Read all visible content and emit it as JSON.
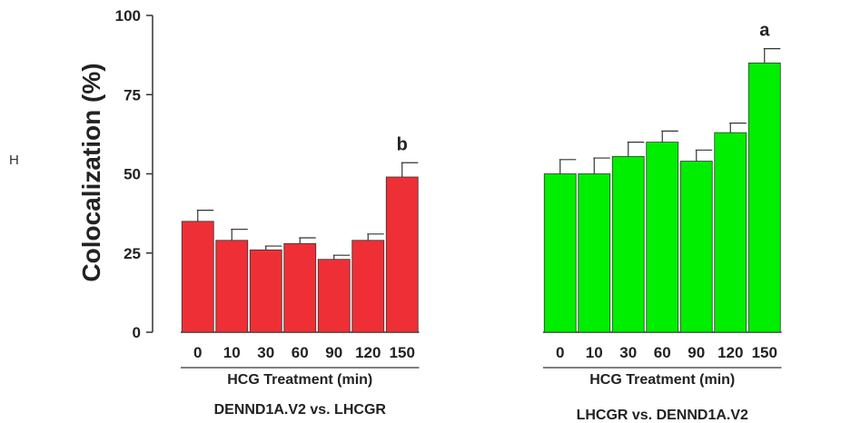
{
  "panel_letter": "H",
  "chart_data": {
    "type": "bar",
    "ylabel": "Colocalization (%)",
    "ylim": [
      0,
      100
    ],
    "yticks": [
      0,
      25,
      50,
      75,
      100
    ],
    "groups": [
      {
        "xlabel": "HCG Treatment (min)",
        "title": "DENND1A.V2 vs. LHCGR",
        "color": "#ee3036",
        "categories": [
          "0",
          "10",
          "30",
          "60",
          "90",
          "120",
          "150"
        ],
        "values": [
          35,
          29,
          26,
          28,
          23,
          29,
          49
        ],
        "errors": [
          3.5,
          3.5,
          1.2,
          1.8,
          1.3,
          2,
          4.5
        ],
        "annotations": [
          {
            "category": "150",
            "text": "b"
          }
        ]
      },
      {
        "xlabel": "HCG Treatment (min)",
        "title": "LHCGR vs. DENND1A.V2",
        "color": "#00ee00",
        "categories": [
          "0",
          "10",
          "30",
          "60",
          "90",
          "120",
          "150"
        ],
        "values": [
          50,
          50,
          55.5,
          60,
          54,
          63,
          85
        ],
        "errors": [
          4.5,
          5,
          4.5,
          3.5,
          3.5,
          3,
          4.5
        ],
        "annotations": [
          {
            "category": "150",
            "text": "a"
          }
        ]
      }
    ]
  }
}
